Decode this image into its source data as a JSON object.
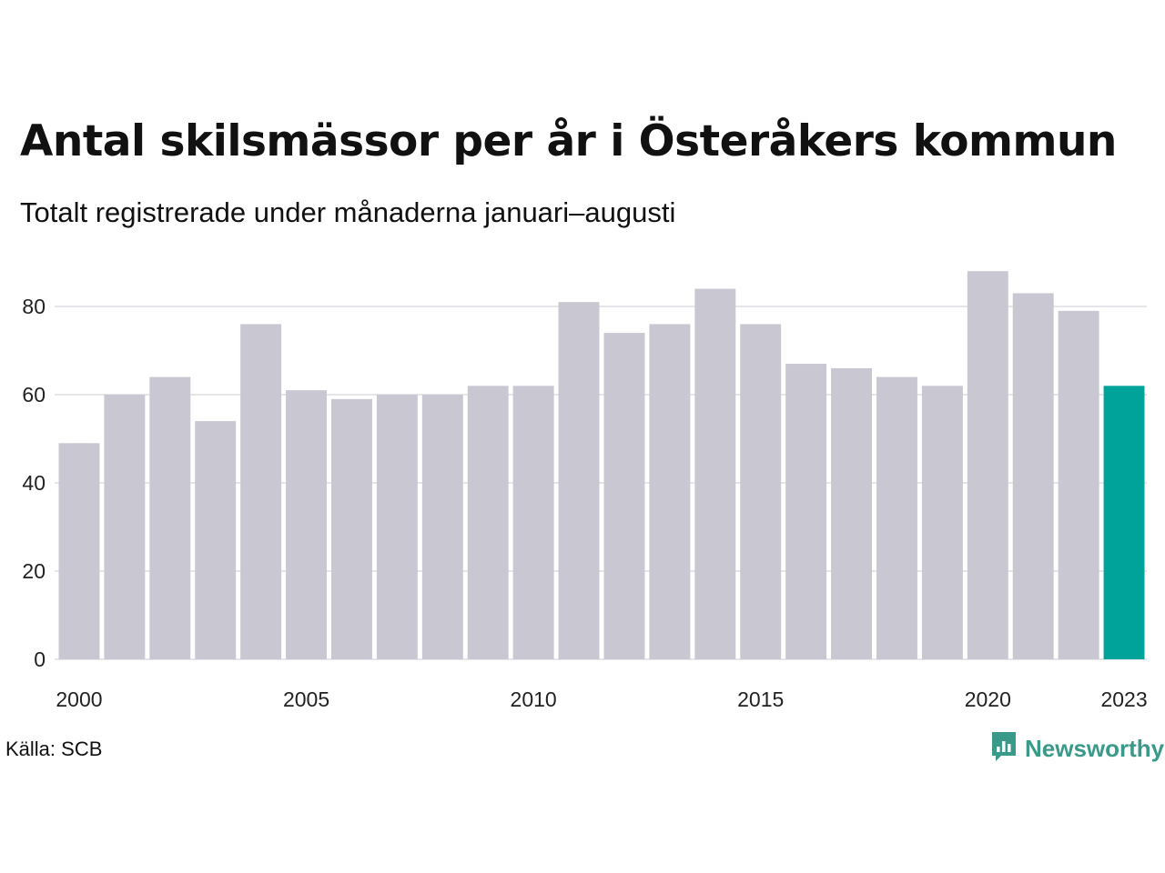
{
  "header": {
    "title": "Antal skilsmässor per år i Österåkers kommun",
    "subtitle": "Totalt registrerade under månaderna januari–augusti"
  },
  "footer": {
    "source": "Källa: SCB",
    "brand": "Newsworthy"
  },
  "colors": {
    "bar": "#c8c7d2",
    "highlight": "#00a39a",
    "grid": "#e6e6ea",
    "brand": "#3a9a8a"
  },
  "icons": {
    "brand_logo": "bar-chart-speech-bubble-icon"
  },
  "chart_data": {
    "type": "bar",
    "title": "Antal skilsmässor per år i Österåkers kommun",
    "subtitle": "Totalt registrerade under månaderna januari–augusti",
    "xlabel": "",
    "ylabel": "",
    "categories": [
      2000,
      2001,
      2002,
      2003,
      2004,
      2005,
      2006,
      2007,
      2008,
      2009,
      2010,
      2011,
      2012,
      2013,
      2014,
      2015,
      2016,
      2017,
      2018,
      2019,
      2020,
      2021,
      2022,
      2023
    ],
    "values": [
      49,
      60,
      64,
      54,
      76,
      61,
      59,
      60,
      60,
      62,
      62,
      81,
      74,
      76,
      84,
      76,
      67,
      66,
      64,
      62,
      88,
      83,
      79,
      62
    ],
    "highlight_category": 2023,
    "ylim": [
      0,
      90
    ],
    "yticks": [
      0,
      20,
      40,
      60,
      80
    ],
    "xticks": [
      2000,
      2005,
      2010,
      2015,
      2020,
      2023
    ],
    "grid": "horizontal",
    "legend": "none"
  }
}
